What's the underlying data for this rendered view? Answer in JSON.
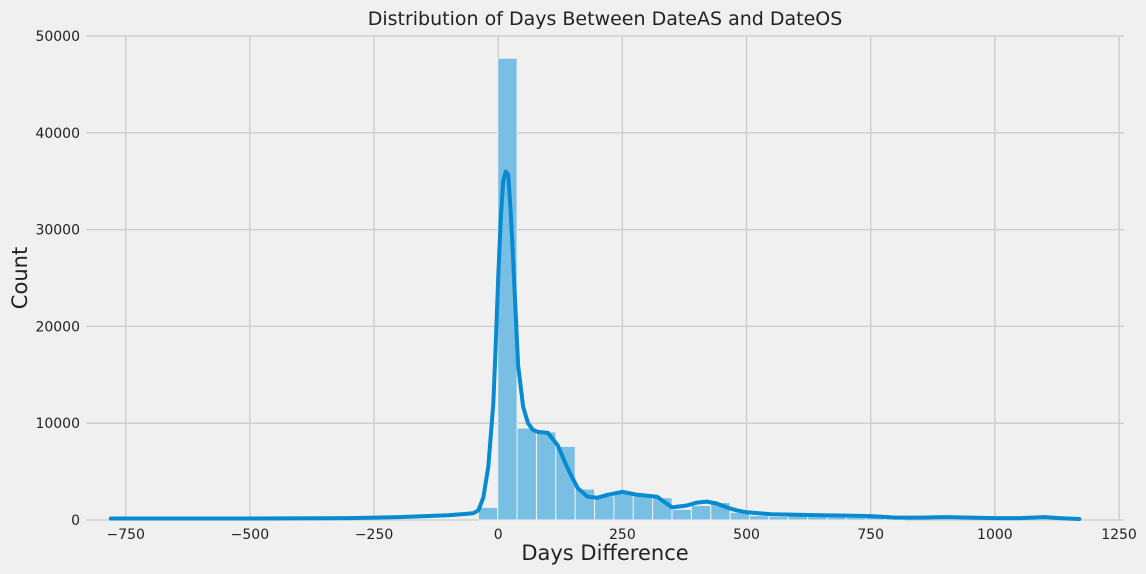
{
  "chart_data": {
    "type": "bar",
    "title": "Distribution of Days Between DateAS and DateOS",
    "xlabel": "Days Difference",
    "ylabel": "Count",
    "xlim": [
      -830,
      1260
    ],
    "ylim": [
      0,
      50000
    ],
    "xticks": [
      -750,
      -500,
      -250,
      0,
      250,
      500,
      750,
      1000,
      1250
    ],
    "yticks": [
      0,
      10000,
      20000,
      30000,
      40000,
      50000
    ],
    "grid": true,
    "bar_color": "#79bfe3",
    "line_color": "#078ad2",
    "background": "#f0f0f0",
    "histogram": {
      "bin_width": 39,
      "bins": [
        {
          "x": -40,
          "count": 1300
        },
        {
          "x": -1,
          "count": 47700
        },
        {
          "x": 38,
          "count": 9500
        },
        {
          "x": 77,
          "count": 9100
        },
        {
          "x": 116,
          "count": 7600
        },
        {
          "x": 155,
          "count": 3200
        },
        {
          "x": 194,
          "count": 2500
        },
        {
          "x": 233,
          "count": 2900
        },
        {
          "x": 272,
          "count": 2700
        },
        {
          "x": 311,
          "count": 2300
        },
        {
          "x": 350,
          "count": 1100
        },
        {
          "x": 389,
          "count": 1500
        },
        {
          "x": 428,
          "count": 1800
        },
        {
          "x": 467,
          "count": 800
        },
        {
          "x": 506,
          "count": 450
        },
        {
          "x": 545,
          "count": 350
        },
        {
          "x": 584,
          "count": 400
        },
        {
          "x": 623,
          "count": 350
        },
        {
          "x": 662,
          "count": 300
        },
        {
          "x": 701,
          "count": 250
        },
        {
          "x": 740,
          "count": 300
        },
        {
          "x": 779,
          "count": 200
        }
      ]
    },
    "kde": {
      "x": [
        -780,
        -500,
        -300,
        -200,
        -100,
        -50,
        -40,
        -30,
        -20,
        -10,
        -5,
        0,
        5,
        10,
        15,
        20,
        25,
        30,
        40,
        50,
        60,
        70,
        80,
        100,
        120,
        140,
        160,
        180,
        200,
        220,
        250,
        280,
        320,
        350,
        380,
        400,
        420,
        440,
        460,
        480,
        500,
        550,
        600,
        650,
        700,
        750,
        800,
        850,
        900,
        1000,
        1050,
        1100,
        1130,
        1170
      ],
      "y": [
        150,
        150,
        200,
        300,
        500,
        700,
        1000,
        2300,
        5500,
        12000,
        18000,
        25000,
        31000,
        35000,
        36000,
        35700,
        32000,
        27000,
        16000,
        11700,
        10000,
        9300,
        9100,
        9000,
        7700,
        5300,
        3300,
        2400,
        2300,
        2600,
        2900,
        2600,
        2400,
        1300,
        1500,
        1800,
        1900,
        1700,
        1300,
        1000,
        800,
        600,
        550,
        500,
        450,
        400,
        250,
        250,
        300,
        200,
        200,
        300,
        200,
        100
      ]
    }
  }
}
